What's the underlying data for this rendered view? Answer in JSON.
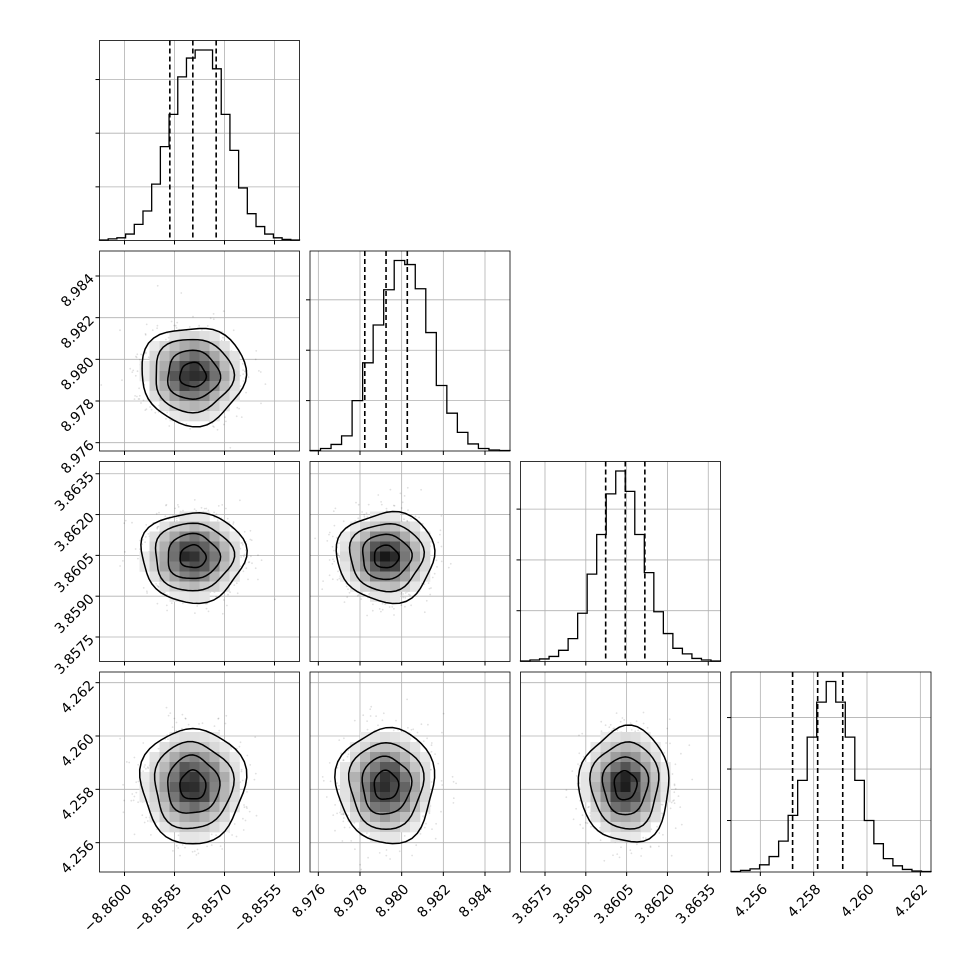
{
  "chart_data": {
    "type": "corner",
    "title": "",
    "parameters": [
      {
        "name": "",
        "range": [
          -8.86075,
          -8.85475
        ],
        "ticks": [
          -8.86,
          -8.8585,
          -8.857,
          -8.8555
        ],
        "tick_labels": [
          "−8.8600",
          "−8.8585",
          "−8.8570",
          "−8.8555"
        ],
        "quantiles": [
          -8.85864,
          -8.85795,
          -8.85725
        ],
        "mean": -8.85795,
        "sigma": 0.00068,
        "histogram": [
          1,
          3,
          5,
          12,
          30,
          55,
          105,
          175,
          235,
          305,
          340,
          355,
          355,
          320,
          235,
          168,
          98,
          50,
          26,
          12,
          5,
          2,
          1
        ],
        "hist_yticks": [
          100,
          200,
          300
        ]
      },
      {
        "name": "",
        "range": [
          8.9756,
          8.9852
        ],
        "ticks": [
          8.976,
          8.978,
          8.98,
          8.982,
          8.984
        ],
        "tick_labels": [
          "8.976",
          "8.978",
          "8.980",
          "8.982",
          "8.984"
        ],
        "quantiles": [
          8.97823,
          8.97925,
          8.98027
        ],
        "mean": 8.97925,
        "sigma": 0.00102,
        "histogram": [
          1,
          5,
          13,
          30,
          100,
          175,
          250,
          320,
          378,
          370,
          322,
          235,
          130,
          75,
          37,
          14,
          5,
          2,
          1
        ],
        "hist_yticks": [
          100,
          200,
          300
        ]
      },
      {
        "name": "",
        "range": [
          3.8566,
          3.86395
        ],
        "ticks": [
          3.8575,
          3.859,
          3.8605,
          3.862,
          3.8635
        ],
        "tick_labels": [
          "3.8575",
          "3.8590",
          "3.8605",
          "3.8620",
          "3.8635"
        ],
        "quantiles": [
          3.85973,
          3.86045,
          3.86117
        ],
        "mean": 3.86045,
        "sigma": 0.00072,
        "histogram": [
          1,
          3,
          5,
          10,
          22,
          45,
          95,
          172,
          250,
          330,
          375,
          335,
          250,
          175,
          98,
          55,
          26,
          15,
          6,
          3,
          1
        ],
        "hist_yticks": [
          100,
          200,
          300
        ]
      },
      {
        "name": "",
        "range": [
          4.2549,
          4.2624
        ],
        "ticks": [
          4.256,
          4.258,
          4.26,
          4.262
        ],
        "tick_labels": [
          "4.256",
          "4.258",
          "4.260",
          "4.262"
        ],
        "quantiles": [
          4.25721,
          4.25815,
          4.25909
        ],
        "mean": 4.25815,
        "sigma": 0.00094,
        "histogram": [
          1,
          3,
          6,
          14,
          30,
          60,
          110,
          178,
          262,
          330,
          370,
          330,
          262,
          178,
          100,
          55,
          26,
          12,
          5,
          2,
          1
        ],
        "hist_yticks": [
          100,
          200,
          300
        ]
      }
    ],
    "show_grid": true,
    "show_datapoints": true,
    "contour_levels_sigma": [
      0.5,
      1,
      1.5,
      2
    ]
  }
}
